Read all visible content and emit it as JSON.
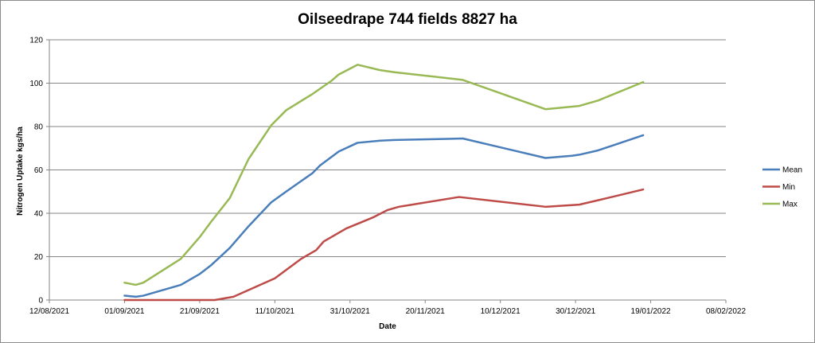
{
  "chart_data": {
    "type": "line",
    "title": "Oilseedrape 744 fields 8827 ha",
    "xlabel": "Date",
    "ylabel": "Nitrogen Uptake kgs/ha",
    "ylim": [
      0,
      120
    ],
    "yticks": [
      0,
      20,
      40,
      60,
      80,
      100,
      120
    ],
    "xlim": [
      "12/08/2021",
      "08/02/2022"
    ],
    "xticks": [
      "12/08/2021",
      "01/09/2021",
      "21/09/2021",
      "11/10/2021",
      "31/10/2021",
      "20/11/2021",
      "10/12/2021",
      "30/12/2021",
      "19/01/2022",
      "08/02/2022"
    ],
    "grid": true,
    "legend_position": "right",
    "series": [
      {
        "name": "Mean",
        "color": "#4a7ebb",
        "points": [
          [
            "01/09/2021",
            2
          ],
          [
            "04/09/2021",
            1.5
          ],
          [
            "06/09/2021",
            2
          ],
          [
            "16/09/2021",
            7
          ],
          [
            "21/09/2021",
            12
          ],
          [
            "24/09/2021",
            16
          ],
          [
            "29/09/2021",
            24
          ],
          [
            "04/10/2021",
            34
          ],
          [
            "10/10/2021",
            45
          ],
          [
            "14/10/2021",
            50
          ],
          [
            "21/10/2021",
            58.5
          ],
          [
            "23/10/2021",
            62
          ],
          [
            "28/10/2021",
            68.5
          ],
          [
            "02/11/2021",
            72.5
          ],
          [
            "08/11/2021",
            73.5
          ],
          [
            "12/11/2021",
            73.8
          ],
          [
            "26/11/2021",
            74.3
          ],
          [
            "30/11/2021",
            74.5
          ],
          [
            "22/12/2021",
            65.5
          ],
          [
            "29/12/2021",
            66.5
          ],
          [
            "31/12/2021",
            67
          ],
          [
            "05/01/2022",
            69
          ],
          [
            "17/01/2022",
            76
          ]
        ]
      },
      {
        "name": "Min",
        "color": "#be4b48",
        "points": [
          [
            "01/09/2021",
            0
          ],
          [
            "20/09/2021",
            0
          ],
          [
            "25/09/2021",
            0
          ],
          [
            "30/09/2021",
            1.5
          ],
          [
            "11/10/2021",
            10
          ],
          [
            "18/10/2021",
            19
          ],
          [
            "22/10/2021",
            23
          ],
          [
            "24/10/2021",
            27
          ],
          [
            "30/10/2021",
            33
          ],
          [
            "06/11/2021",
            38
          ],
          [
            "10/11/2021",
            41.5
          ],
          [
            "13/11/2021",
            43
          ],
          [
            "29/11/2021",
            47.5
          ],
          [
            "22/12/2021",
            43
          ],
          [
            "31/12/2021",
            44
          ],
          [
            "05/01/2022",
            46
          ],
          [
            "17/01/2022",
            51
          ]
        ]
      },
      {
        "name": "Max",
        "color": "#98b954",
        "points": [
          [
            "01/09/2021",
            8
          ],
          [
            "04/09/2021",
            7
          ],
          [
            "06/09/2021",
            8
          ],
          [
            "16/09/2021",
            19
          ],
          [
            "21/09/2021",
            29
          ],
          [
            "24/09/2021",
            36
          ],
          [
            "29/09/2021",
            47
          ],
          [
            "04/10/2021",
            65
          ],
          [
            "10/10/2021",
            80.5
          ],
          [
            "14/10/2021",
            87.5
          ],
          [
            "21/10/2021",
            95
          ],
          [
            "26/10/2021",
            101
          ],
          [
            "28/10/2021",
            104
          ],
          [
            "02/11/2021",
            108.5
          ],
          [
            "08/11/2021",
            106
          ],
          [
            "12/11/2021",
            105
          ],
          [
            "30/11/2021",
            101.5
          ],
          [
            "22/12/2021",
            88
          ],
          [
            "31/12/2021",
            89.5
          ],
          [
            "05/01/2022",
            92
          ],
          [
            "17/01/2022",
            100.5
          ]
        ]
      }
    ]
  }
}
